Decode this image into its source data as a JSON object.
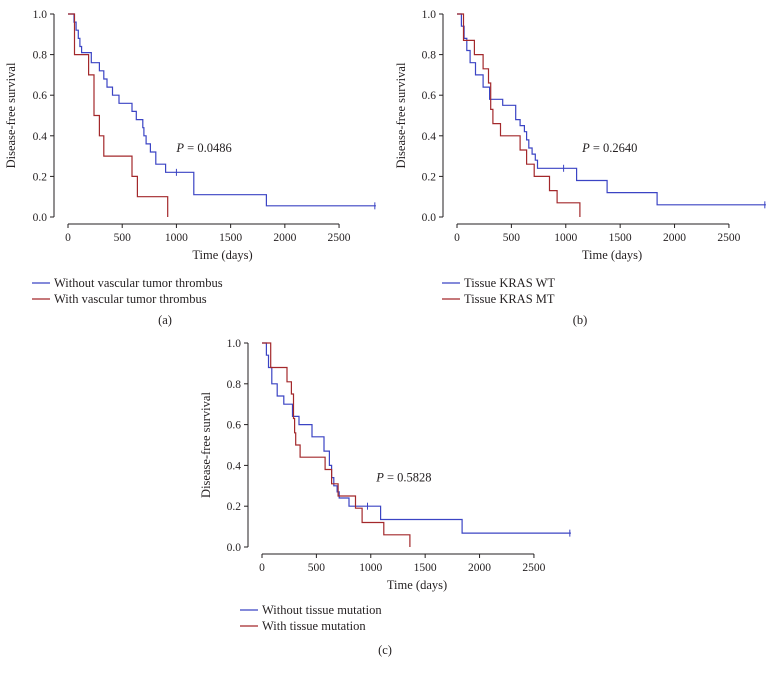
{
  "figure": {
    "background": "#ffffff",
    "colors": {
      "group1": "#3b44c4",
      "group2": "#a3282b",
      "axis": "#231f20"
    }
  },
  "chart_data": [
    {
      "panel_label": "(a)",
      "type": "line",
      "chart_kind": "kaplan-meier",
      "xlabel": "Time (days)",
      "ylabel": "Disease-free survival",
      "xlim": [
        0,
        2850
      ],
      "ylim": [
        0,
        1
      ],
      "x_ticks": [
        0,
        500,
        1000,
        1500,
        2000,
        2500
      ],
      "x_tick_labels": [
        "0",
        "500",
        "1000",
        "1500",
        "2000",
        "2500"
      ],
      "y_ticks": [
        0,
        0.2,
        0.4,
        0.6,
        0.8,
        1
      ],
      "y_tick_labels": [
        "0.0",
        "0.2",
        "0.4",
        "0.6",
        "0.8",
        "1.0"
      ],
      "p_value": {
        "prefix": "P",
        "text": " = 0.0486",
        "x": 1000,
        "y": 0.34
      },
      "series": [
        {
          "name": "Without vascular tumor thrombus",
          "color": "#3b44c4",
          "steps": [
            [
              0,
              1.0
            ],
            [
              40,
              1.0
            ],
            [
              55,
              0.96
            ],
            [
              75,
              0.92
            ],
            [
              95,
              0.88
            ],
            [
              110,
              0.84
            ],
            [
              125,
              0.81
            ],
            [
              215,
              0.76
            ],
            [
              290,
              0.72
            ],
            [
              330,
              0.68
            ],
            [
              360,
              0.64
            ],
            [
              410,
              0.6
            ],
            [
              470,
              0.56
            ],
            [
              590,
              0.52
            ],
            [
              630,
              0.48
            ],
            [
              690,
              0.44
            ],
            [
              700,
              0.4
            ],
            [
              720,
              0.36
            ],
            [
              760,
              0.32
            ],
            [
              810,
              0.26
            ],
            [
              900,
              0.22
            ],
            [
              1100,
              0.22
            ],
            [
              1160,
              0.11
            ],
            [
              1830,
              0.055
            ],
            [
              2840,
              0.055
            ]
          ],
          "censored": [
            [
              1000,
              0.22
            ],
            [
              2830,
              0.055
            ]
          ]
        },
        {
          "name": "With vascular tumor thrombus",
          "color": "#a3282b",
          "steps": [
            [
              0,
              1.0
            ],
            [
              40,
              1.0
            ],
            [
              60,
              0.8
            ],
            [
              190,
              0.7
            ],
            [
              240,
              0.5
            ],
            [
              290,
              0.4
            ],
            [
              330,
              0.3
            ],
            [
              590,
              0.2
            ],
            [
              640,
              0.1
            ],
            [
              920,
              0.0
            ]
          ],
          "censored": []
        }
      ]
    },
    {
      "panel_label": "(b)",
      "type": "line",
      "chart_kind": "kaplan-meier",
      "xlabel": "Time (days)",
      "ylabel": "Disease-free survival",
      "xlim": [
        0,
        2850
      ],
      "ylim": [
        0,
        1
      ],
      "x_ticks": [
        0,
        500,
        1000,
        1500,
        2000,
        2500
      ],
      "x_tick_labels": [
        "0",
        "500",
        "1000",
        "1500",
        "2000",
        "2500"
      ],
      "y_ticks": [
        0,
        0.2,
        0.4,
        0.6,
        0.8,
        1
      ],
      "y_tick_labels": [
        "0.0",
        "0.2",
        "0.4",
        "0.6",
        "0.8",
        "1.0"
      ],
      "p_value": {
        "prefix": "P",
        "text": " = 0.2640",
        "x": 1150,
        "y": 0.34
      },
      "series": [
        {
          "name": "Tissue KRAS WT",
          "color": "#3b44c4",
          "steps": [
            [
              0,
              1.0
            ],
            [
              30,
              1.0
            ],
            [
              40,
              0.94
            ],
            [
              65,
              0.88
            ],
            [
              90,
              0.82
            ],
            [
              120,
              0.76
            ],
            [
              170,
              0.7
            ],
            [
              240,
              0.64
            ],
            [
              300,
              0.58
            ],
            [
              420,
              0.55
            ],
            [
              540,
              0.48
            ],
            [
              580,
              0.45
            ],
            [
              620,
              0.42
            ],
            [
              640,
              0.38
            ],
            [
              660,
              0.34
            ],
            [
              690,
              0.31
            ],
            [
              720,
              0.28
            ],
            [
              740,
              0.24
            ],
            [
              1000,
              0.24
            ],
            [
              1100,
              0.18
            ],
            [
              1380,
              0.12
            ],
            [
              1840,
              0.06
            ],
            [
              2840,
              0.06
            ]
          ],
          "censored": [
            [
              980,
              0.24
            ],
            [
              2830,
              0.06
            ]
          ]
        },
        {
          "name": "Tissue KRAS MT",
          "color": "#a3282b",
          "steps": [
            [
              0,
              1.0
            ],
            [
              30,
              1.0
            ],
            [
              60,
              0.87
            ],
            [
              160,
              0.8
            ],
            [
              240,
              0.73
            ],
            [
              290,
              0.66
            ],
            [
              310,
              0.53
            ],
            [
              330,
              0.46
            ],
            [
              400,
              0.4
            ],
            [
              580,
              0.33
            ],
            [
              640,
              0.26
            ],
            [
              710,
              0.2
            ],
            [
              850,
              0.13
            ],
            [
              920,
              0.07
            ],
            [
              1130,
              0.0
            ]
          ],
          "censored": []
        }
      ]
    },
    {
      "panel_label": "(c)",
      "type": "line",
      "chart_kind": "kaplan-meier",
      "xlabel": "Time (days)",
      "ylabel": "Disease-free survival",
      "xlim": [
        0,
        2850
      ],
      "ylim": [
        0,
        1
      ],
      "x_ticks": [
        0,
        500,
        1000,
        1500,
        2000,
        2500
      ],
      "x_tick_labels": [
        "0",
        "500",
        "1000",
        "1500",
        "2000",
        "2500"
      ],
      "y_ticks": [
        0,
        0.2,
        0.4,
        0.6,
        0.8,
        1
      ],
      "y_tick_labels": [
        "0.0",
        "0.2",
        "0.4",
        "0.6",
        "0.8",
        "1.0"
      ],
      "p_value": {
        "prefix": "P",
        "text": " = 0.5828",
        "x": 1050,
        "y": 0.34
      },
      "series": [
        {
          "name": "Without tissue mutation",
          "color": "#3b44c4",
          "steps": [
            [
              0,
              1.0
            ],
            [
              30,
              1.0
            ],
            [
              40,
              0.94
            ],
            [
              60,
              0.88
            ],
            [
              90,
              0.8
            ],
            [
              140,
              0.74
            ],
            [
              200,
              0.7
            ],
            [
              280,
              0.64
            ],
            [
              340,
              0.6
            ],
            [
              460,
              0.54
            ],
            [
              570,
              0.47
            ],
            [
              620,
              0.4
            ],
            [
              640,
              0.34
            ],
            [
              660,
              0.3
            ],
            [
              690,
              0.27
            ],
            [
              710,
              0.24
            ],
            [
              800,
              0.2
            ],
            [
              1090,
              0.135
            ],
            [
              1840,
              0.068
            ],
            [
              2840,
              0.068
            ]
          ],
          "censored": [
            [
              970,
              0.2
            ],
            [
              2830,
              0.068
            ]
          ]
        },
        {
          "name": "With tissue mutation",
          "color": "#a3282b",
          "steps": [
            [
              0,
              1.0
            ],
            [
              30,
              1.0
            ],
            [
              80,
              0.88
            ],
            [
              230,
              0.81
            ],
            [
              270,
              0.75
            ],
            [
              290,
              0.63
            ],
            [
              300,
              0.56
            ],
            [
              310,
              0.5
            ],
            [
              350,
              0.44
            ],
            [
              580,
              0.38
            ],
            [
              640,
              0.31
            ],
            [
              700,
              0.25
            ],
            [
              860,
              0.19
            ],
            [
              920,
              0.12
            ],
            [
              1120,
              0.06
            ],
            [
              1360,
              0.0
            ]
          ],
          "censored": []
        }
      ]
    }
  ]
}
